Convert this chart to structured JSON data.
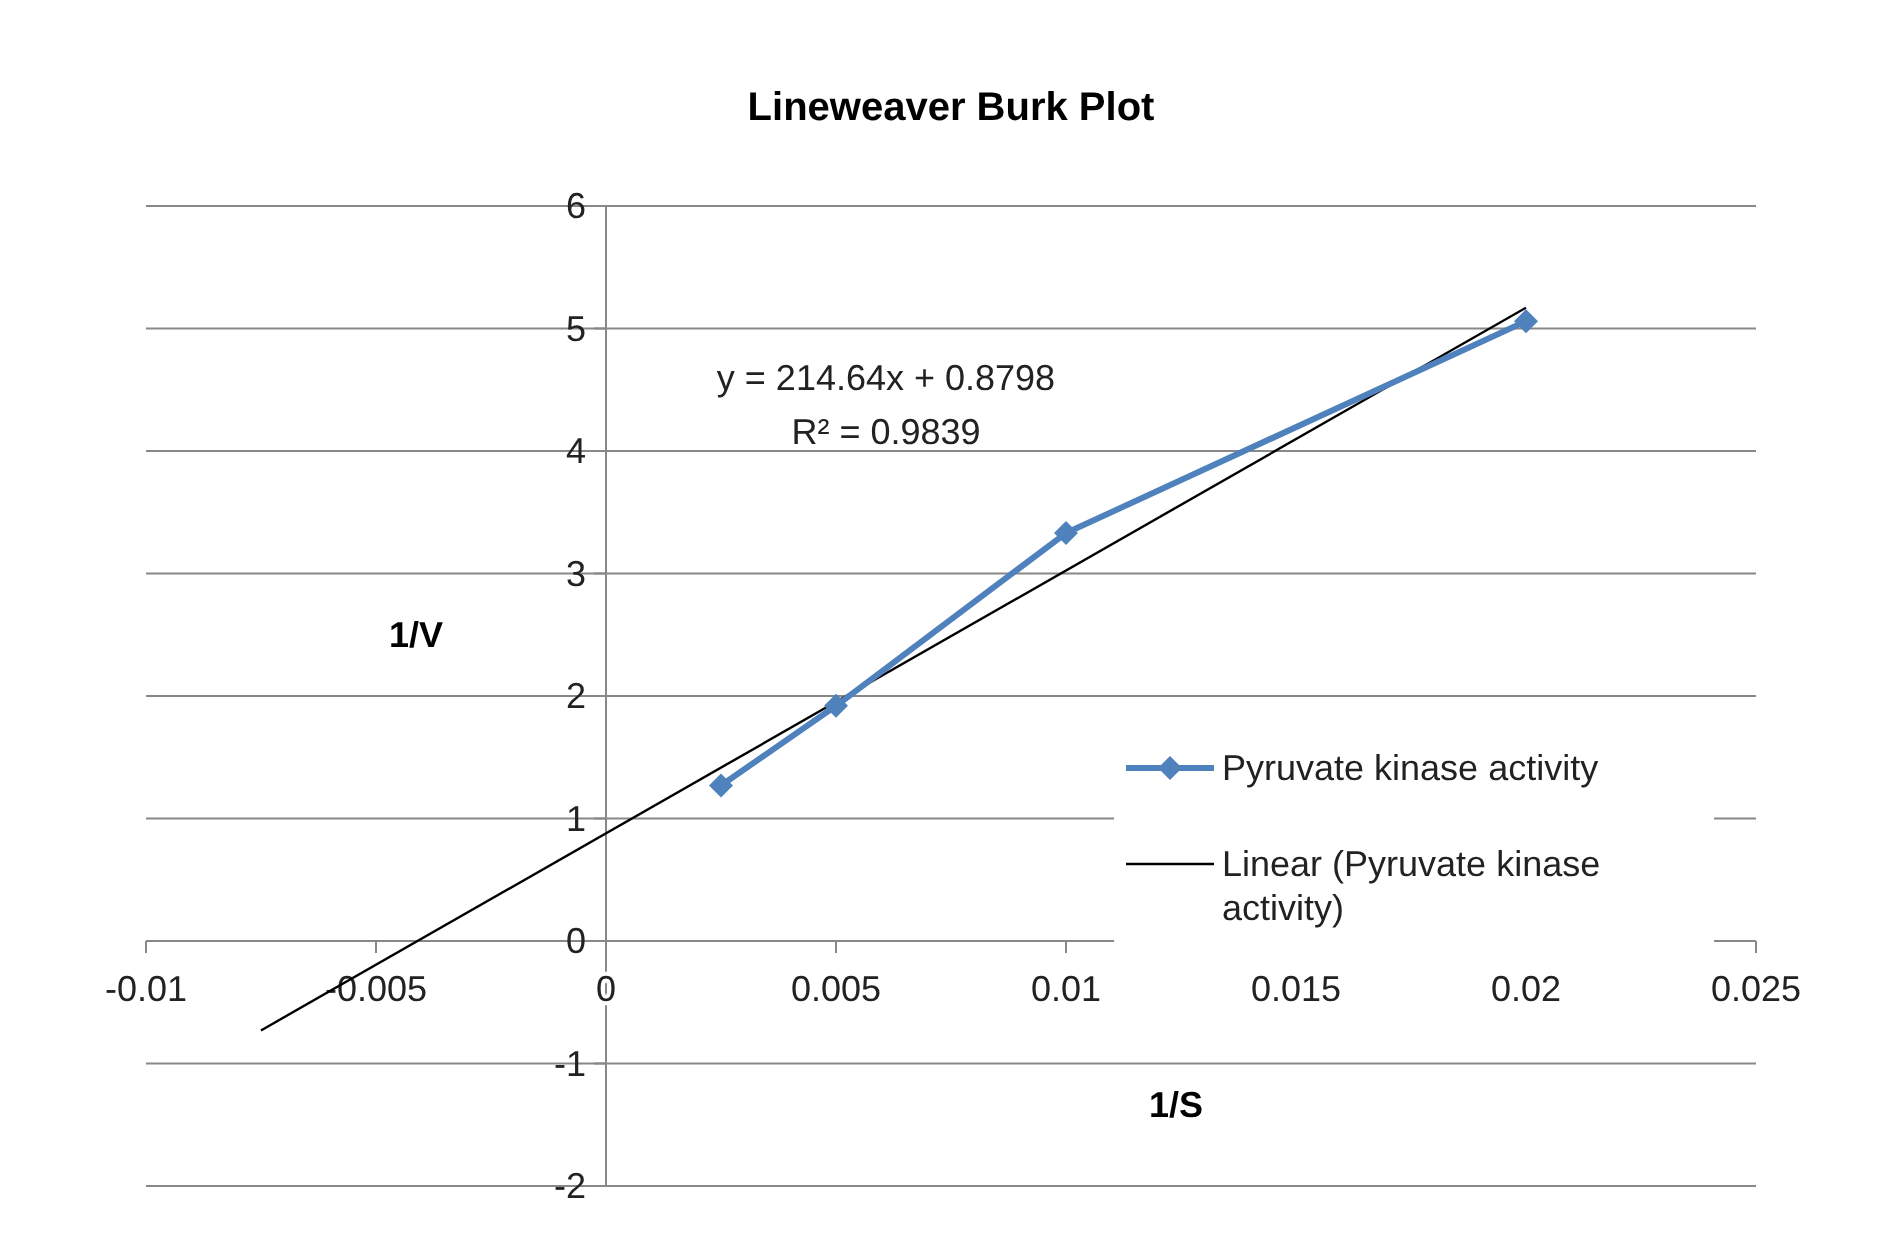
{
  "chart_data": {
    "type": "line",
    "title": "Lineweaver Burk Plot",
    "xlabel": "1/S",
    "ylabel": "1/V",
    "x": [
      0.0025,
      0.005,
      0.01,
      0.02
    ],
    "series": [
      {
        "name": "Pyruvate kinase activity",
        "color": "#4f81bd",
        "values": [
          1.27,
          1.92,
          3.33,
          5.06
        ],
        "marker": "diamond"
      },
      {
        "name": "Linear (Pyruvate kinase activity)",
        "color": "#000000",
        "type": "line",
        "x": [
          -0.0075,
          0.02
        ],
        "values": [
          -0.73,
          5.17
        ],
        "marker": "none"
      }
    ],
    "annotations": [
      "y = 214.64x + 0.8798",
      "R² = 0.9839"
    ],
    "xlim": [
      -0.01,
      0.025
    ],
    "xticks": [
      -0.01,
      -0.005,
      0,
      0.005,
      0.01,
      0.015,
      0.02,
      0.025
    ],
    "ylim": [
      -2,
      6
    ],
    "yticks": [
      -2,
      -1,
      0,
      1,
      2,
      3,
      4,
      5,
      6
    ],
    "grid": "y",
    "legend": "right",
    "line_style": "solid"
  }
}
